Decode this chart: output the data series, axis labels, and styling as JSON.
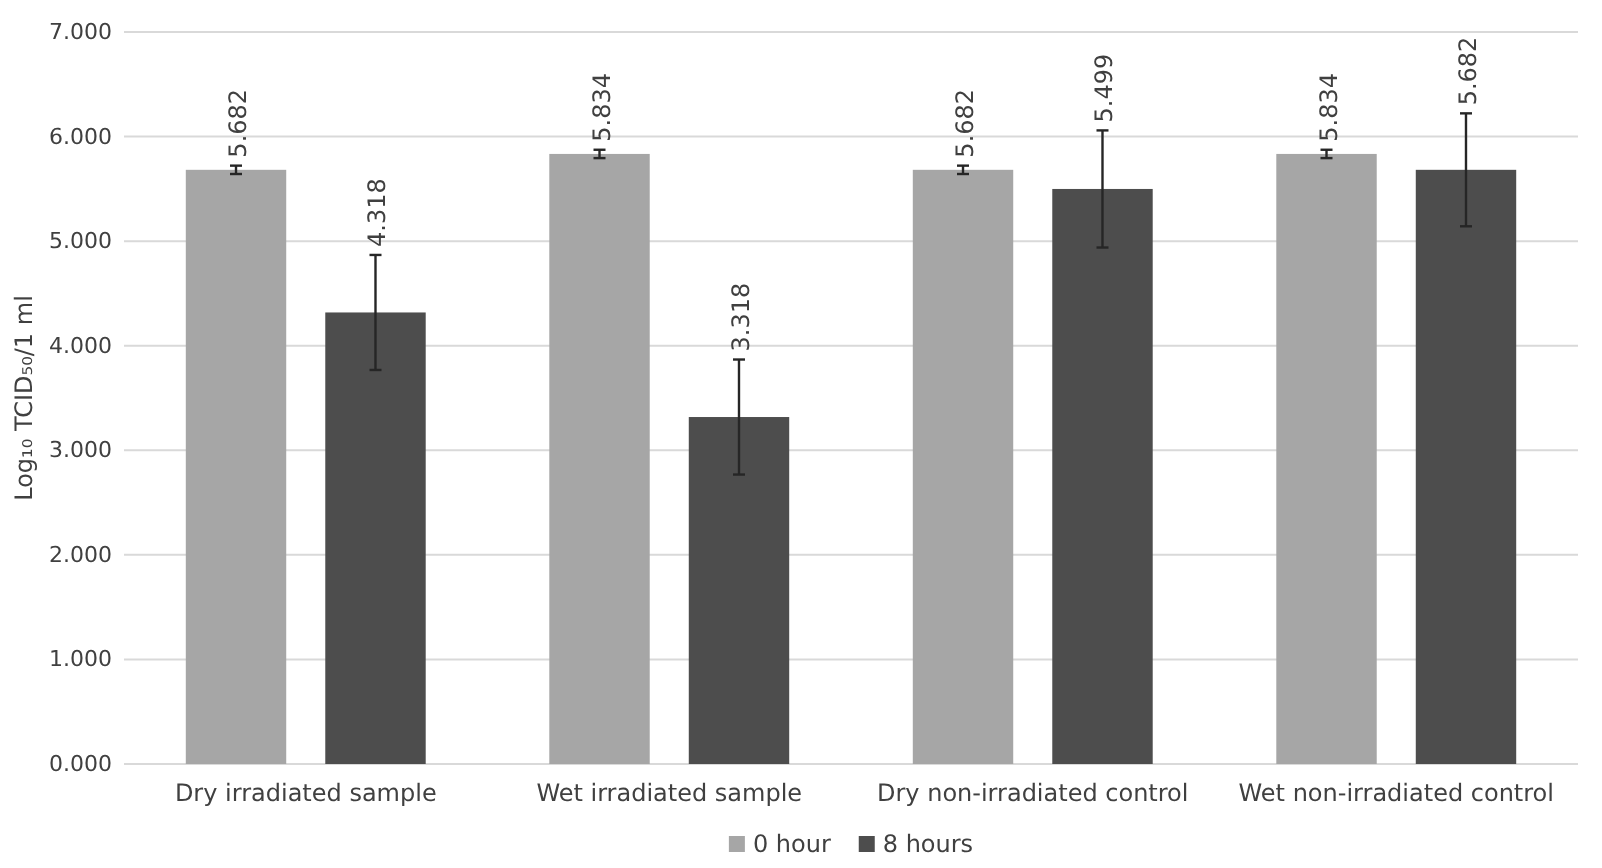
{
  "chart_data": {
    "type": "bar",
    "ylabel": "Log₁₀ TCID₅₀/1 ml",
    "categories": [
      "Dry irradiated sample",
      "Wet irradiated sample",
      "Dry non-irradiated control",
      "Wet non-irradiated control"
    ],
    "series": [
      {
        "name": "0 hour",
        "color": "#a6a6a6",
        "values": [
          5.682,
          5.834,
          5.682,
          5.834
        ],
        "errors": [
          0.04,
          0.04,
          0.04,
          0.04
        ]
      },
      {
        "name": "8 hours",
        "color": "#4d4d4d",
        "values": [
          4.318,
          3.318,
          5.499,
          5.682
        ],
        "errors": [
          0.55,
          0.55,
          0.56,
          0.54
        ]
      }
    ],
    "ylim": [
      0,
      7
    ],
    "yticks": [
      {
        "value": 0,
        "label": "0.000"
      },
      {
        "value": 1,
        "label": "1.000"
      },
      {
        "value": 2,
        "label": "2.000"
      },
      {
        "value": 3,
        "label": "3.000"
      },
      {
        "value": 4,
        "label": "4.000"
      },
      {
        "value": 5,
        "label": "5.000"
      },
      {
        "value": 6,
        "label": "6.000"
      },
      {
        "value": 7,
        "label": "7.000"
      }
    ],
    "grid": "y",
    "data_labels": true,
    "legend": "bottom"
  }
}
